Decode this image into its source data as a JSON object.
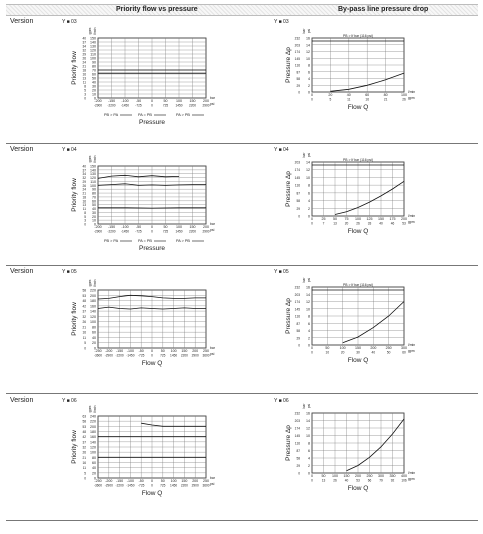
{
  "header": {
    "col1": "Priority flow vs pressure",
    "col2": "By-pass line pressure drop"
  },
  "rows": [
    {
      "version": "Version",
      "code_left": "Y ■ 03",
      "code_right": "Y ■ 03"
    },
    {
      "version": "Version",
      "code_left": "Y ■ 04",
      "code_right": "Y ■ 04"
    },
    {
      "version": "Version",
      "code_left": "Y ■ 05",
      "code_right": "Y ■ 05"
    },
    {
      "version": "Version",
      "code_left": "Y ■ 06",
      "code_right": "Y ■ 06"
    }
  ],
  "chart_data": [
    {
      "type": "line",
      "ylabel": "Priority flow",
      "xlabel": "Pressure",
      "y_unit_top": "gpm",
      "y_unit_bottom": "l/min",
      "x_unit_top": "bar",
      "x_unit_bottom": "psi",
      "y_ticks": [
        "0",
        "10",
        "20",
        "30",
        "40",
        "50",
        "60",
        "70",
        "80",
        "90",
        "100",
        "110",
        "120",
        "130",
        "140",
        "150"
      ],
      "y_ticks_gpm": [
        "0",
        "3",
        "5",
        "8",
        "11",
        "13",
        "16",
        "18",
        "21",
        "24",
        "26",
        "29",
        "32",
        "34",
        "37",
        "40"
      ],
      "x_ticks": [
        "-200",
        "-150",
        "-100",
        "-50",
        "0",
        "50",
        "100",
        "150",
        "200"
      ],
      "x_ticks_psi": [
        "-2900",
        "-2200",
        "-1450",
        "-725",
        "0",
        "725",
        "1450",
        "2200",
        "2900"
      ],
      "ylim": [
        0,
        150
      ],
      "xlim": [
        -200,
        200
      ],
      "legend": [
        "PB > PA",
        "PA = PB",
        "PA > PB"
      ],
      "series": [
        {
          "name": "",
          "x": [
            -200,
            -100,
            0,
            100,
            200
          ],
          "y": [
            62,
            62,
            62,
            62,
            62
          ]
        },
        {
          "name": "",
          "x": [
            -200,
            -100,
            0,
            100,
            200
          ],
          "y": [
            70,
            70,
            70,
            70,
            70
          ]
        }
      ]
    },
    {
      "type": "line",
      "ylabel": "Priority flow",
      "xlabel": "Pressure",
      "y_unit_top": "gpm",
      "y_unit_bottom": "l/min",
      "x_unit_top": "bar",
      "x_unit_bottom": "psi",
      "y_ticks": [
        "0",
        "10",
        "20",
        "30",
        "40",
        "50",
        "60",
        "70",
        "80",
        "90",
        "100",
        "110",
        "120",
        "130",
        "140",
        "150"
      ],
      "y_ticks_gpm": [
        "0",
        "3",
        "5",
        "8",
        "11",
        "13",
        "16",
        "18",
        "21",
        "24",
        "26",
        "29",
        "32",
        "34",
        "37",
        "40"
      ],
      "x_ticks": [
        "-200",
        "-150",
        "-100",
        "-50",
        "0",
        "50",
        "100",
        "150",
        "200"
      ],
      "x_ticks_psi": [
        "-2900",
        "-2200",
        "-1450",
        "-725",
        "0",
        "725",
        "1450",
        "2200",
        "2900"
      ],
      "ylim": [
        0,
        150
      ],
      "xlim": [
        -200,
        200
      ],
      "legend": [
        "PB > PA",
        "PA = PB",
        "PA > PB"
      ],
      "series": [
        {
          "name": "",
          "x": [
            -200,
            -150,
            -100,
            -50,
            0,
            50,
            100
          ],
          "y": [
            118,
            124,
            126,
            122,
            125,
            122,
            123
          ]
        },
        {
          "name": "",
          "x": [
            -200,
            -150,
            -100,
            -50,
            0,
            50,
            100,
            150,
            200
          ],
          "y": [
            100,
            102,
            104,
            100,
            101,
            100,
            101,
            102,
            102
          ]
        },
        {
          "name": "",
          "x": [
            -200,
            -100,
            0,
            100,
            200
          ],
          "y": [
            42,
            42,
            41,
            42,
            42
          ]
        }
      ]
    },
    {
      "type": "line",
      "ylabel": "Priority flow",
      "xlabel": "Flow Q",
      "y_unit_top": "gpm",
      "y_unit_bottom": "l/min",
      "x_unit_top": "bar",
      "x_unit_bottom": "psi",
      "y_ticks": [
        "0",
        "20",
        "40",
        "60",
        "80",
        "100",
        "120",
        "140",
        "160",
        "180",
        "200",
        "220"
      ],
      "y_ticks_gpm": [
        "0",
        "5",
        "11",
        "16",
        "21",
        "26",
        "32",
        "37",
        "42",
        "48",
        "53",
        "58"
      ],
      "x_ticks": [
        "-250",
        "-200",
        "-150",
        "-100",
        "-50",
        "0",
        "50",
        "100",
        "150",
        "200",
        "250"
      ],
      "x_ticks_psi": [
        "-3600",
        "-2900",
        "-2200",
        "-1450",
        "-725",
        "0",
        "725",
        "1450",
        "2200",
        "2900",
        "3600"
      ],
      "ylim": [
        0,
        220
      ],
      "xlim": [
        -250,
        250
      ],
      "legend": [],
      "series": [
        {
          "name": "",
          "x": [
            -250,
            -200,
            -150,
            -100,
            -50,
            0,
            50,
            100,
            150,
            200,
            250
          ],
          "y": [
            186,
            188,
            195,
            200,
            198,
            195,
            190,
            188,
            188,
            190,
            190
          ]
        },
        {
          "name": "",
          "x": [
            -250,
            -200,
            -150,
            -100,
            -50,
            0,
            50,
            100,
            150,
            200,
            250
          ],
          "y": [
            150,
            155,
            150,
            148,
            152,
            150,
            148,
            150,
            152,
            150,
            150
          ]
        }
      ]
    },
    {
      "type": "line",
      "ylabel": "Priority flow",
      "xlabel": "Flow Q",
      "y_unit_top": "gpm",
      "y_unit_bottom": "l/min",
      "x_unit_top": "bar",
      "x_unit_bottom": "psi",
      "y_ticks": [
        "0",
        "20",
        "40",
        "60",
        "80",
        "100",
        "120",
        "140",
        "160",
        "180",
        "200",
        "220",
        "240"
      ],
      "y_ticks_gpm": [
        "0",
        "5",
        "11",
        "16",
        "21",
        "26",
        "32",
        "37",
        "42",
        "48",
        "53",
        "58",
        "63"
      ],
      "x_ticks": [
        "-250",
        "-200",
        "-150",
        "-100",
        "-50",
        "0",
        "50",
        "100",
        "150",
        "200",
        "250"
      ],
      "x_ticks_psi": [
        "-3600",
        "-2900",
        "-2200",
        "-1450",
        "-725",
        "0",
        "725",
        "1450",
        "2200",
        "2900",
        "3600"
      ],
      "ylim": [
        0,
        240
      ],
      "xlim": [
        -250,
        250
      ],
      "legend": [],
      "series": [
        {
          "name": "",
          "x": [
            -50,
            0,
            50,
            100,
            150,
            200,
            250
          ],
          "y": [
            212,
            205,
            200,
            200,
            200,
            200,
            200
          ]
        },
        {
          "name": "",
          "x": [
            -250,
            -200,
            -150,
            -100,
            -50,
            0,
            50,
            100,
            150,
            200,
            250
          ],
          "y": [
            160,
            160,
            160,
            160,
            160,
            160,
            160,
            160,
            160,
            160,
            160
          ]
        },
        {
          "name": "",
          "x": [
            -250,
            -150,
            -50,
            50,
            150,
            250
          ],
          "y": [
            80,
            80,
            80,
            80,
            80,
            80
          ]
        }
      ]
    },
    {
      "type": "line",
      "ylabel": "Pressure Δp",
      "xlabel": "Flow Q",
      "y_unit_top": "bar",
      "y_unit_bottom": "psi",
      "x_unit_top": "l/min",
      "x_unit_bottom": "gpm",
      "y_ticks": [
        "0",
        "2",
        "4",
        "6",
        "8",
        "10",
        "12",
        "14",
        "16"
      ],
      "y_ticks_psi": [
        "0",
        "29",
        "58",
        "87",
        "116",
        "145",
        "174",
        "203",
        "232"
      ],
      "x_ticks": [
        "0",
        "20",
        "40",
        "60",
        "80",
        "100"
      ],
      "x_ticks_gpm": [
        "0",
        "5",
        "11",
        "16",
        "21",
        "26"
      ],
      "ylim": [
        0,
        16
      ],
      "xlim": [
        0,
        100
      ],
      "annotation": "PB > If bar (116 psi)",
      "series": [
        {
          "name": "",
          "x": [
            20,
            40,
            60,
            80,
            100
          ],
          "y": [
            0.2,
            0.8,
            2.0,
            3.6,
            5.6
          ]
        }
      ]
    },
    {
      "type": "line",
      "ylabel": "Pressure Δp",
      "xlabel": "Flow Q",
      "y_unit_top": "bar",
      "y_unit_bottom": "psi",
      "x_unit_top": "l/min",
      "x_unit_bottom": "gpm",
      "y_ticks": [
        "0",
        "2",
        "4",
        "6",
        "8",
        "10",
        "12",
        "14"
      ],
      "y_ticks_psi": [
        "0",
        "29",
        "58",
        "87",
        "116",
        "145",
        "174",
        "203"
      ],
      "x_ticks": [
        "0",
        "25",
        "50",
        "75",
        "100",
        "125",
        "150",
        "175",
        "200"
      ],
      "x_ticks_gpm": [
        "0",
        "7",
        "13",
        "20",
        "26",
        "33",
        "40",
        "46",
        "53"
      ],
      "ylim": [
        0,
        14
      ],
      "xlim": [
        0,
        200
      ],
      "annotation": "PB > If bar (116 psi)",
      "series": [
        {
          "name": "",
          "x": [
            50,
            75,
            100,
            125,
            150,
            175,
            200
          ],
          "y": [
            0.4,
            1.1,
            2.2,
            3.6,
            5.2,
            7.0,
            9.0
          ]
        }
      ]
    },
    {
      "type": "line",
      "ylabel": "Pressure Δp",
      "xlabel": "Flow Q",
      "y_unit_top": "bar",
      "y_unit_bottom": "psi",
      "x_unit_top": "l/min",
      "x_unit_bottom": "gpm",
      "y_ticks": [
        "0",
        "2",
        "4",
        "6",
        "8",
        "10",
        "12",
        "14",
        "16"
      ],
      "y_ticks_psi": [
        "0",
        "29",
        "58",
        "87",
        "116",
        "145",
        "174",
        "203",
        "232"
      ],
      "x_ticks": [
        "0",
        "50",
        "100",
        "150",
        "200",
        "250",
        "300"
      ],
      "x_ticks_gpm": [
        "0",
        "10",
        "20",
        "30",
        "40",
        "50",
        "60",
        "70",
        "80"
      ],
      "ylim": [
        0,
        16
      ],
      "xlim": [
        0,
        300
      ],
      "annotation": "PB > If bar (116 psi)",
      "series": [
        {
          "name": "",
          "x": [
            100,
            150,
            200,
            250,
            300
          ],
          "y": [
            0.6,
            2.2,
            4.8,
            8.0,
            12.0
          ]
        }
      ]
    },
    {
      "type": "line",
      "ylabel": "Pressure Δp",
      "xlabel": "Flow Q",
      "y_unit_top": "bar",
      "y_unit_bottom": "psi",
      "x_unit_top": "l/min",
      "x_unit_bottom": "gpm",
      "y_ticks": [
        "0",
        "2",
        "4",
        "6",
        "8",
        "10",
        "12",
        "14",
        "16"
      ],
      "y_ticks_psi": [
        "0",
        "29",
        "58",
        "87",
        "116",
        "145",
        "174",
        "203",
        "232"
      ],
      "x_ticks": [
        "0",
        "50",
        "100",
        "150",
        "200",
        "250",
        "300",
        "350",
        "400"
      ],
      "x_ticks_gpm": [
        "0",
        "13",
        "26",
        "40",
        "53",
        "66",
        "79",
        "92",
        "106"
      ],
      "ylim": [
        0,
        16
      ],
      "xlim": [
        0,
        400
      ],
      "series": [
        {
          "name": "",
          "x": [
            150,
            200,
            250,
            300,
            350,
            400
          ],
          "y": [
            0.6,
            2.0,
            4.2,
            7.0,
            10.4,
            14.4
          ]
        }
      ]
    }
  ]
}
